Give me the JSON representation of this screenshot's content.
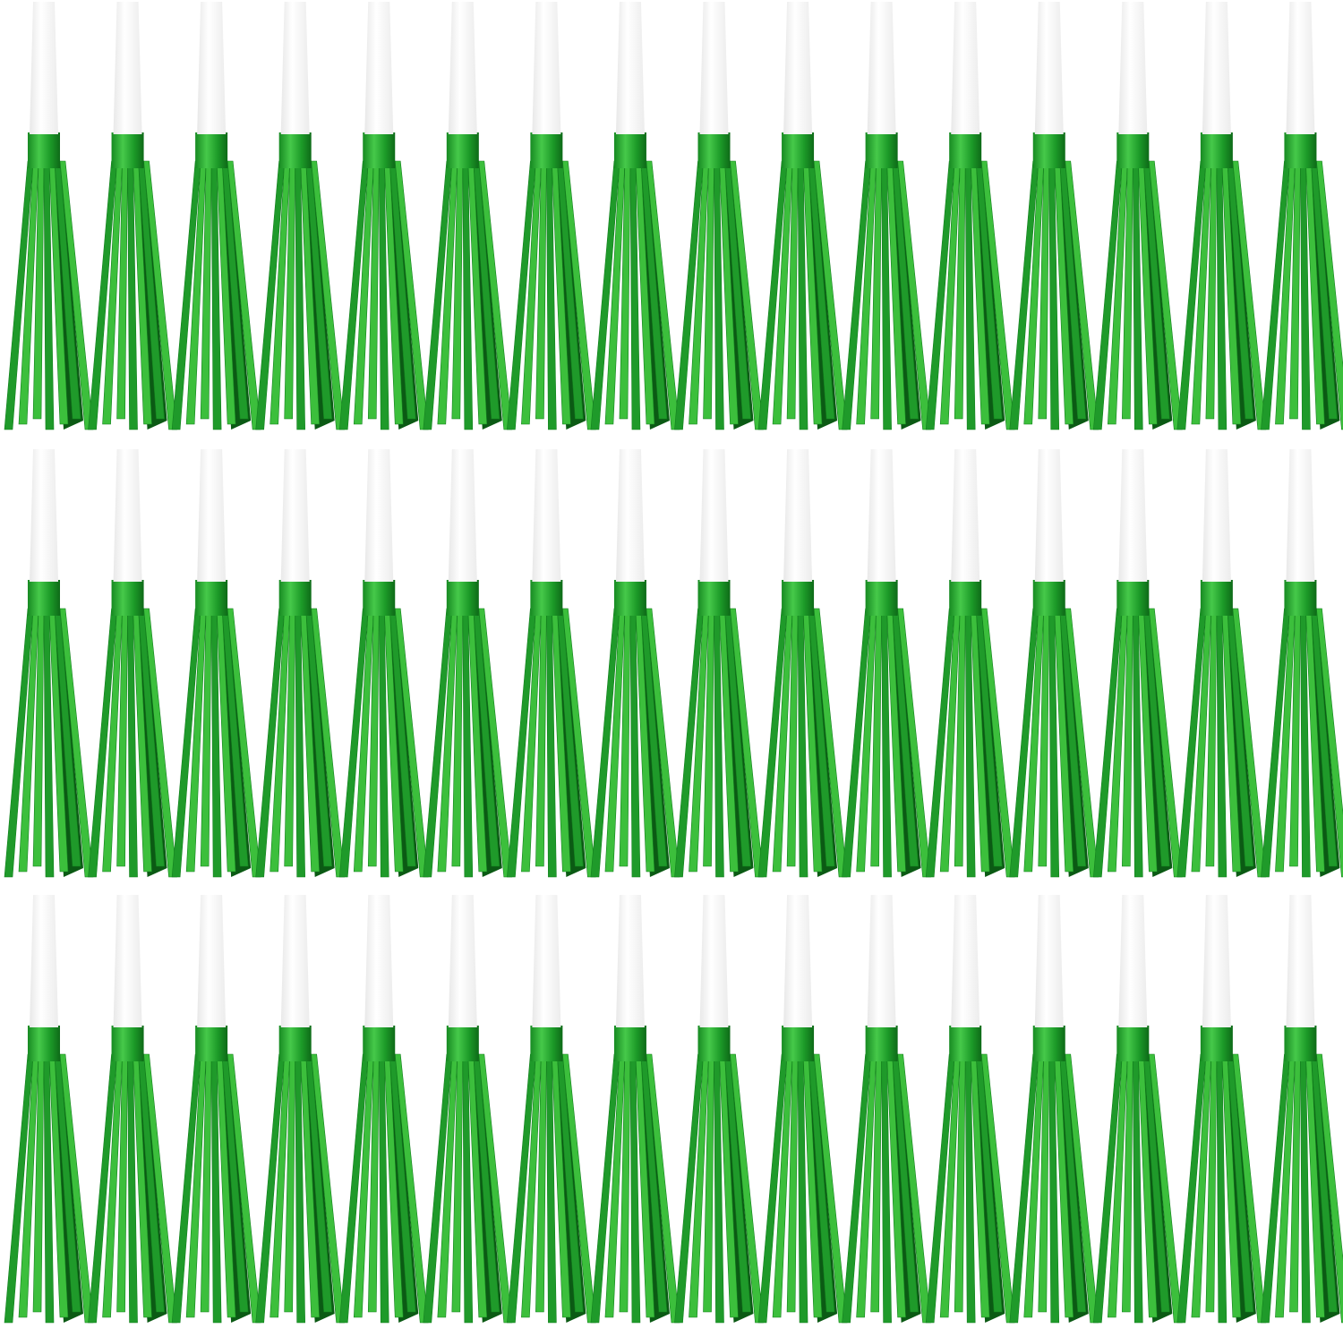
{
  "image": {
    "subject": "party-horns-with-fringe",
    "rows": 3,
    "columns": 16,
    "colors": {
      "background": "#ffffff",
      "mouthpiece": "#ffffff",
      "mouthpiece_shade": "#e6e6e6",
      "fringe_light": "#3cbf3c",
      "fringe_mid": "#1f9a2a",
      "fringe_dark": "#0b5a14",
      "band": "#23a030"
    }
  }
}
